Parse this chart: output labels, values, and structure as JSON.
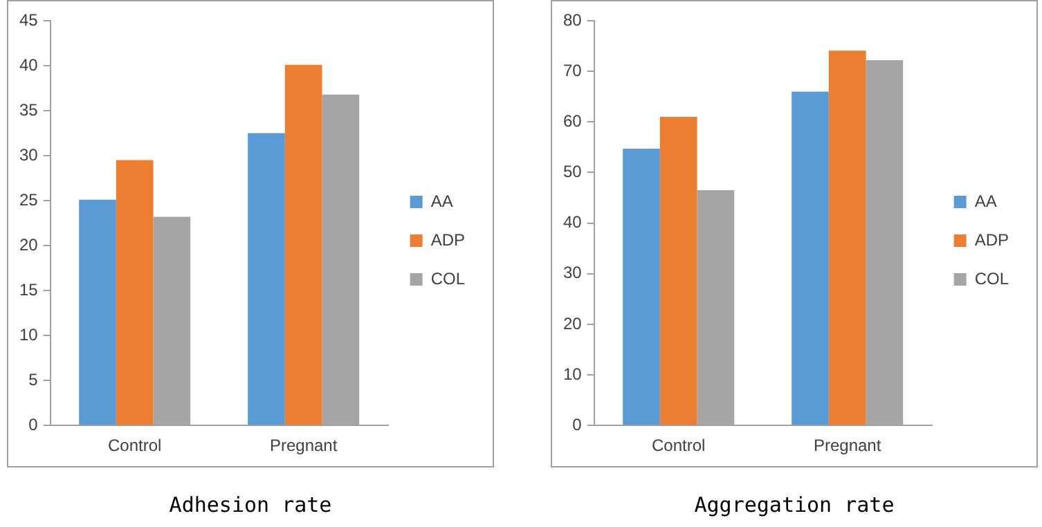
{
  "chart_data": [
    {
      "type": "bar",
      "title": "Adhesion rate",
      "categories": [
        "Control",
        "Pregnant"
      ],
      "series": [
        {
          "name": "AA",
          "color": "#5b9bd5",
          "values": [
            25.1,
            32.5
          ]
        },
        {
          "name": "ADP",
          "color": "#ed7d31",
          "values": [
            29.5,
            40.1
          ]
        },
        {
          "name": "COL",
          "color": "#a5a5a5",
          "values": [
            23.2,
            36.8
          ]
        }
      ],
      "ylim": [
        0,
        45
      ],
      "yticks": [
        0,
        5,
        10,
        15,
        20,
        25,
        30,
        35,
        40,
        45
      ],
      "grid": false,
      "legend": "right"
    },
    {
      "type": "bar",
      "title": "Aggregation rate",
      "categories": [
        "Control",
        "Pregnant"
      ],
      "series": [
        {
          "name": "AA",
          "color": "#5b9bd5",
          "values": [
            54.7,
            66
          ]
        },
        {
          "name": "ADP",
          "color": "#ed7d31",
          "values": [
            61,
            74.1
          ]
        },
        {
          "name": "COL",
          "color": "#a5a5a5",
          "values": [
            46.5,
            72.2
          ]
        }
      ],
      "ylim": [
        0,
        80
      ],
      "yticks": [
        0,
        10,
        20,
        30,
        40,
        50,
        60,
        70,
        80
      ],
      "grid": false,
      "legend": "right"
    }
  ]
}
